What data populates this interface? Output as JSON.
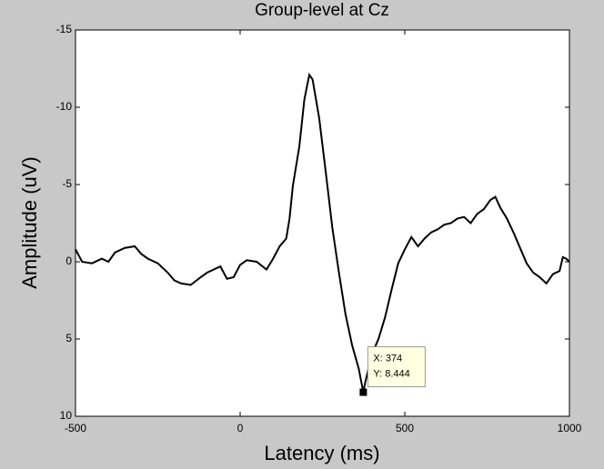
{
  "chart_data": {
    "type": "line",
    "title": "Group-level at Cz",
    "xlabel": "Latency (ms)",
    "ylabel": "Amplitude (uV)",
    "x": [
      -500,
      -480,
      -450,
      -420,
      -400,
      -380,
      -350,
      -320,
      -300,
      -280,
      -250,
      -220,
      -200,
      -180,
      -150,
      -120,
      -100,
      -80,
      -60,
      -40,
      -20,
      0,
      20,
      50,
      80,
      100,
      120,
      140,
      150,
      160,
      180,
      195,
      210,
      220,
      240,
      260,
      280,
      300,
      320,
      340,
      360,
      374,
      380,
      400,
      420,
      440,
      460,
      480,
      500,
      520,
      540,
      560,
      580,
      600,
      620,
      640,
      660,
      680,
      700,
      720,
      740,
      760,
      775,
      790,
      810,
      830,
      850,
      870,
      890,
      910,
      930,
      950,
      970,
      980,
      990,
      1000
    ],
    "series": [
      {
        "name": "Cz",
        "color": "#000000",
        "values": [
          -0.8,
          0,
          0.1,
          -0.2,
          0,
          -0.6,
          -0.9,
          -1.0,
          -0.5,
          -0.2,
          0.1,
          0.7,
          1.2,
          1.4,
          1.5,
          1.0,
          0.7,
          0.5,
          0.3,
          1.1,
          1.0,
          0.2,
          -0.1,
          0,
          0.5,
          -0.2,
          -1.0,
          -1.5,
          -2.8,
          -4.9,
          -7.5,
          -10.5,
          -12.1,
          -11.8,
          -9.3,
          -5.8,
          -2.2,
          0.7,
          3.4,
          5.4,
          6.9,
          8.444,
          7.8,
          6.0,
          5.0,
          3.6,
          1.8,
          0.1,
          -0.8,
          -1.6,
          -1.0,
          -1.5,
          -1.9,
          -2.1,
          -2.4,
          -2.5,
          -2.8,
          -2.9,
          -2.5,
          -3.1,
          -3.4,
          -4.0,
          -4.2,
          -3.5,
          -2.8,
          -1.9,
          -0.9,
          0.1,
          0.7,
          1.0,
          1.4,
          0.8,
          0.6,
          -0.3,
          -0.2,
          0
        ]
      }
    ],
    "xlim": [
      -500,
      1000
    ],
    "xticks": [
      -500,
      0,
      500,
      1000
    ],
    "ylim": [
      -15,
      10
    ],
    "yticks": [
      -15,
      -10,
      -5,
      0,
      5,
      10
    ],
    "y_reversed": true,
    "datatip": {
      "x": 374,
      "y": 8.444,
      "label_x": "X: 374",
      "label_y": "Y: 8.444"
    }
  }
}
